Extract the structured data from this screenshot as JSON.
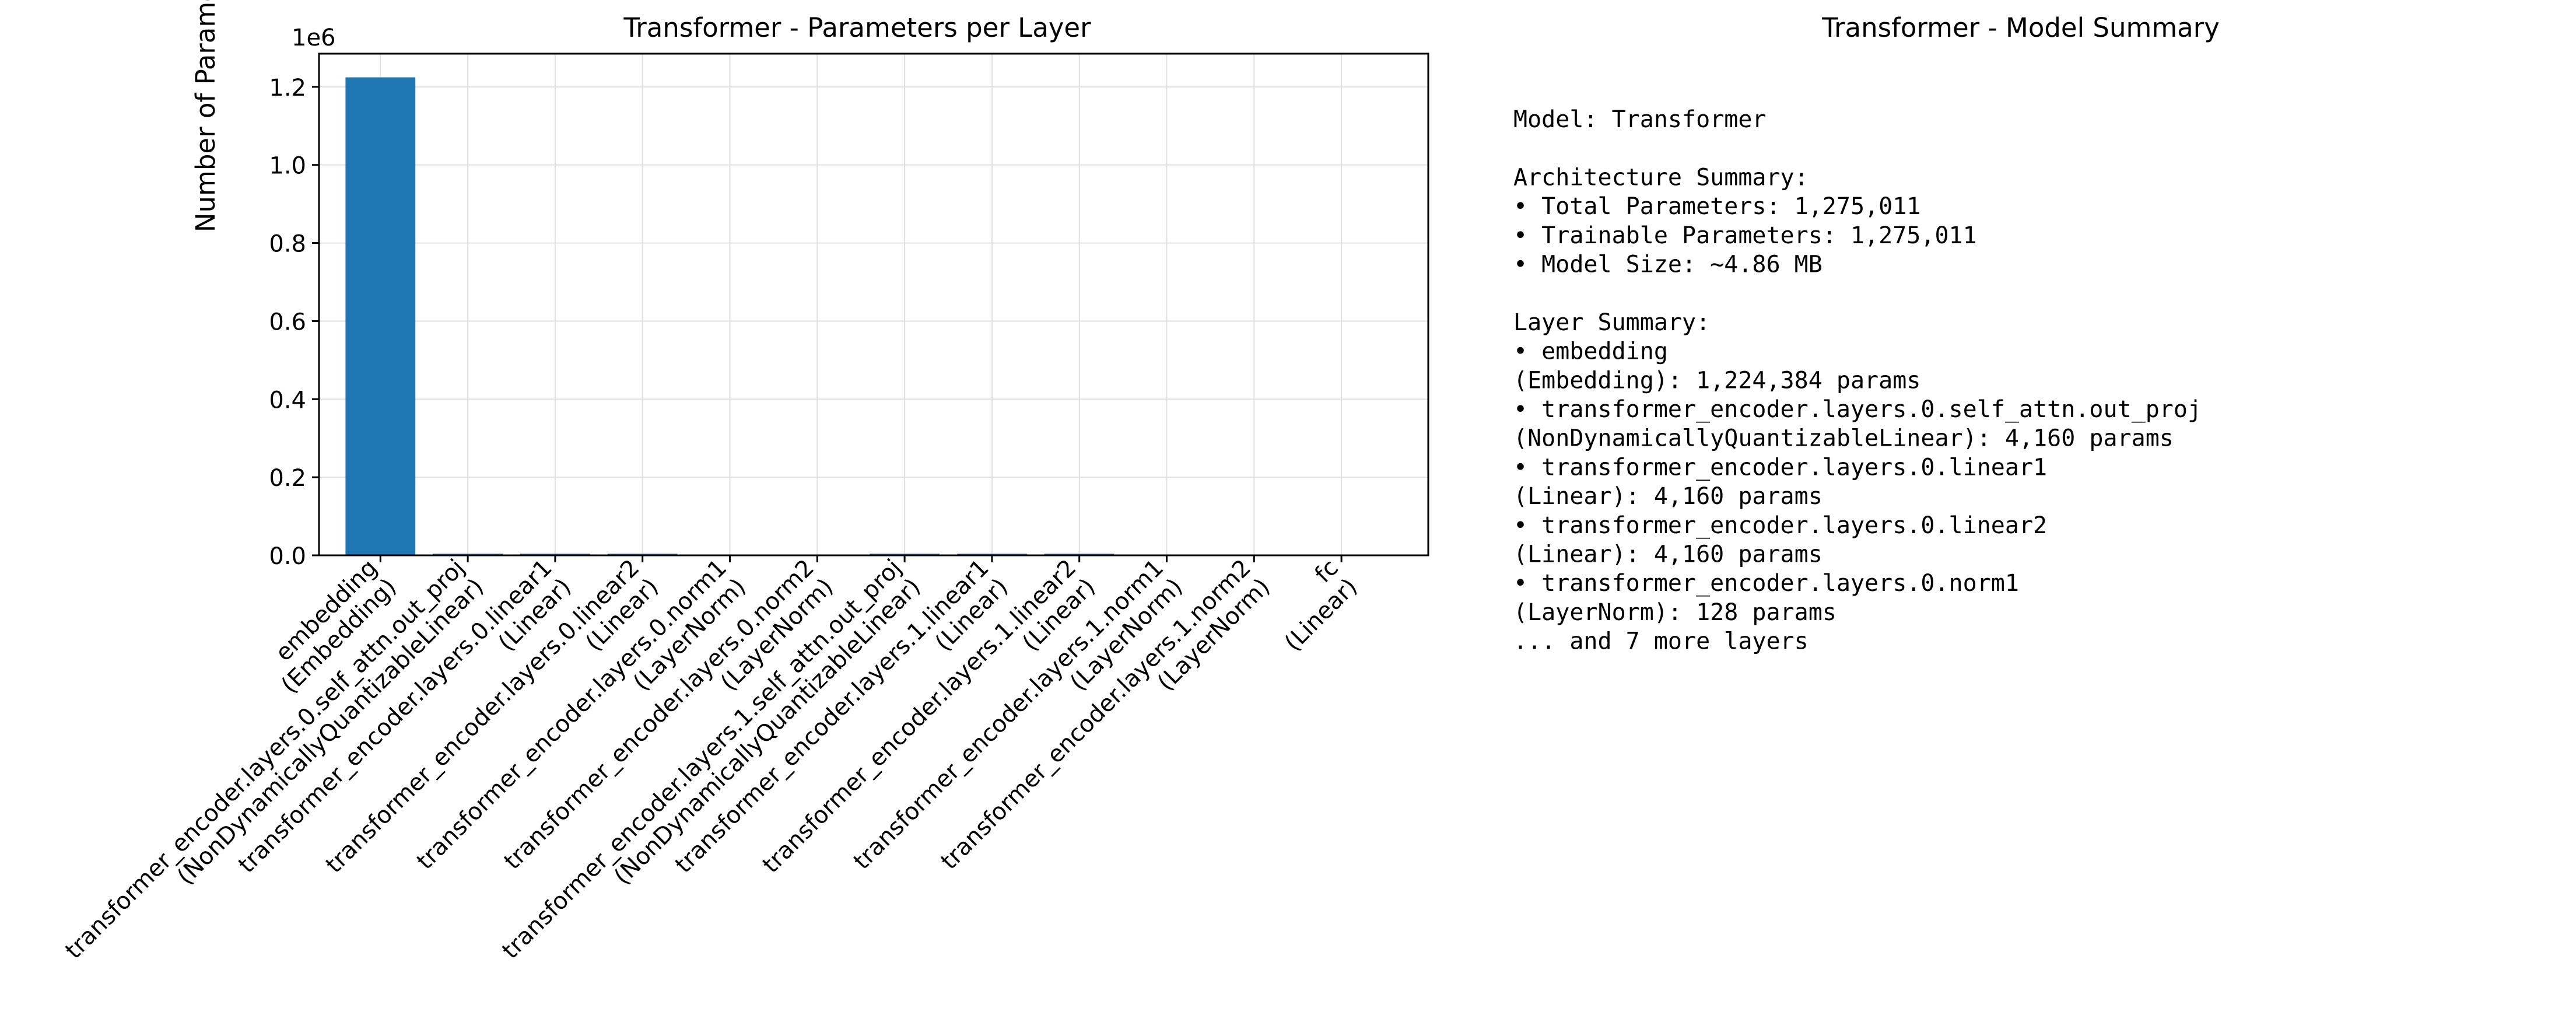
{
  "colors": {
    "bar": "#1f77b4",
    "grid": "#e0e0e0",
    "axis": "#000000",
    "text": "#000000"
  },
  "chart_data": {
    "type": "bar",
    "title": "Transformer - Parameters per Layer",
    "xlabel": "",
    "ylabel": "Number of Parameters",
    "offset_label": "1e6",
    "ylim": [
      0,
      1285000
    ],
    "yticks": [
      0,
      200000,
      400000,
      600000,
      800000,
      1000000,
      1200000
    ],
    "ytick_labels": [
      "0.0",
      "0.2",
      "0.4",
      "0.6",
      "0.8",
      "1.0",
      "1.2"
    ],
    "grid": true,
    "categories": [
      [
        "embedding",
        "(Embedding)"
      ],
      [
        "transformer_encoder.layers.0.self_attn.out_proj",
        "(NonDynamicallyQuantizableLinear)"
      ],
      [
        "transformer_encoder.layers.0.linear1",
        "(Linear)"
      ],
      [
        "transformer_encoder.layers.0.linear2",
        "(Linear)"
      ],
      [
        "transformer_encoder.layers.0.norm1",
        "(LayerNorm)"
      ],
      [
        "transformer_encoder.layers.0.norm2",
        "(LayerNorm)"
      ],
      [
        "transformer_encoder.layers.1.self_attn.out_proj",
        "(NonDynamicallyQuantizableLinear)"
      ],
      [
        "transformer_encoder.layers.1.linear1",
        "(Linear)"
      ],
      [
        "transformer_encoder.layers.1.linear2",
        "(Linear)"
      ],
      [
        "transformer_encoder.layers.1.norm1",
        "(LayerNorm)"
      ],
      [
        "transformer_encoder.layers.1.norm2",
        "(LayerNorm)"
      ],
      [
        "fc",
        "(Linear)"
      ]
    ],
    "values": [
      1224384,
      4160,
      4160,
      4160,
      128,
      128,
      4160,
      4160,
      4160,
      128,
      128,
      1
    ]
  },
  "summary": {
    "title": "Transformer - Model Summary",
    "lines": [
      "Model: Transformer",
      "",
      "Architecture Summary:",
      "• Total Parameters: 1,275,011",
      "• Trainable Parameters: 1,275,011",
      "• Model Size: ~4.86 MB",
      "",
      "Layer Summary:",
      "• embedding",
      "(Embedding): 1,224,384 params",
      "• transformer_encoder.layers.0.self_attn.out_proj",
      "(NonDynamicallyQuantizableLinear): 4,160 params",
      "• transformer_encoder.layers.0.linear1",
      "(Linear): 4,160 params",
      "• transformer_encoder.layers.0.linear2",
      "(Linear): 4,160 params",
      "• transformer_encoder.layers.0.norm1",
      "(LayerNorm): 128 params",
      "... and 7 more layers"
    ]
  }
}
